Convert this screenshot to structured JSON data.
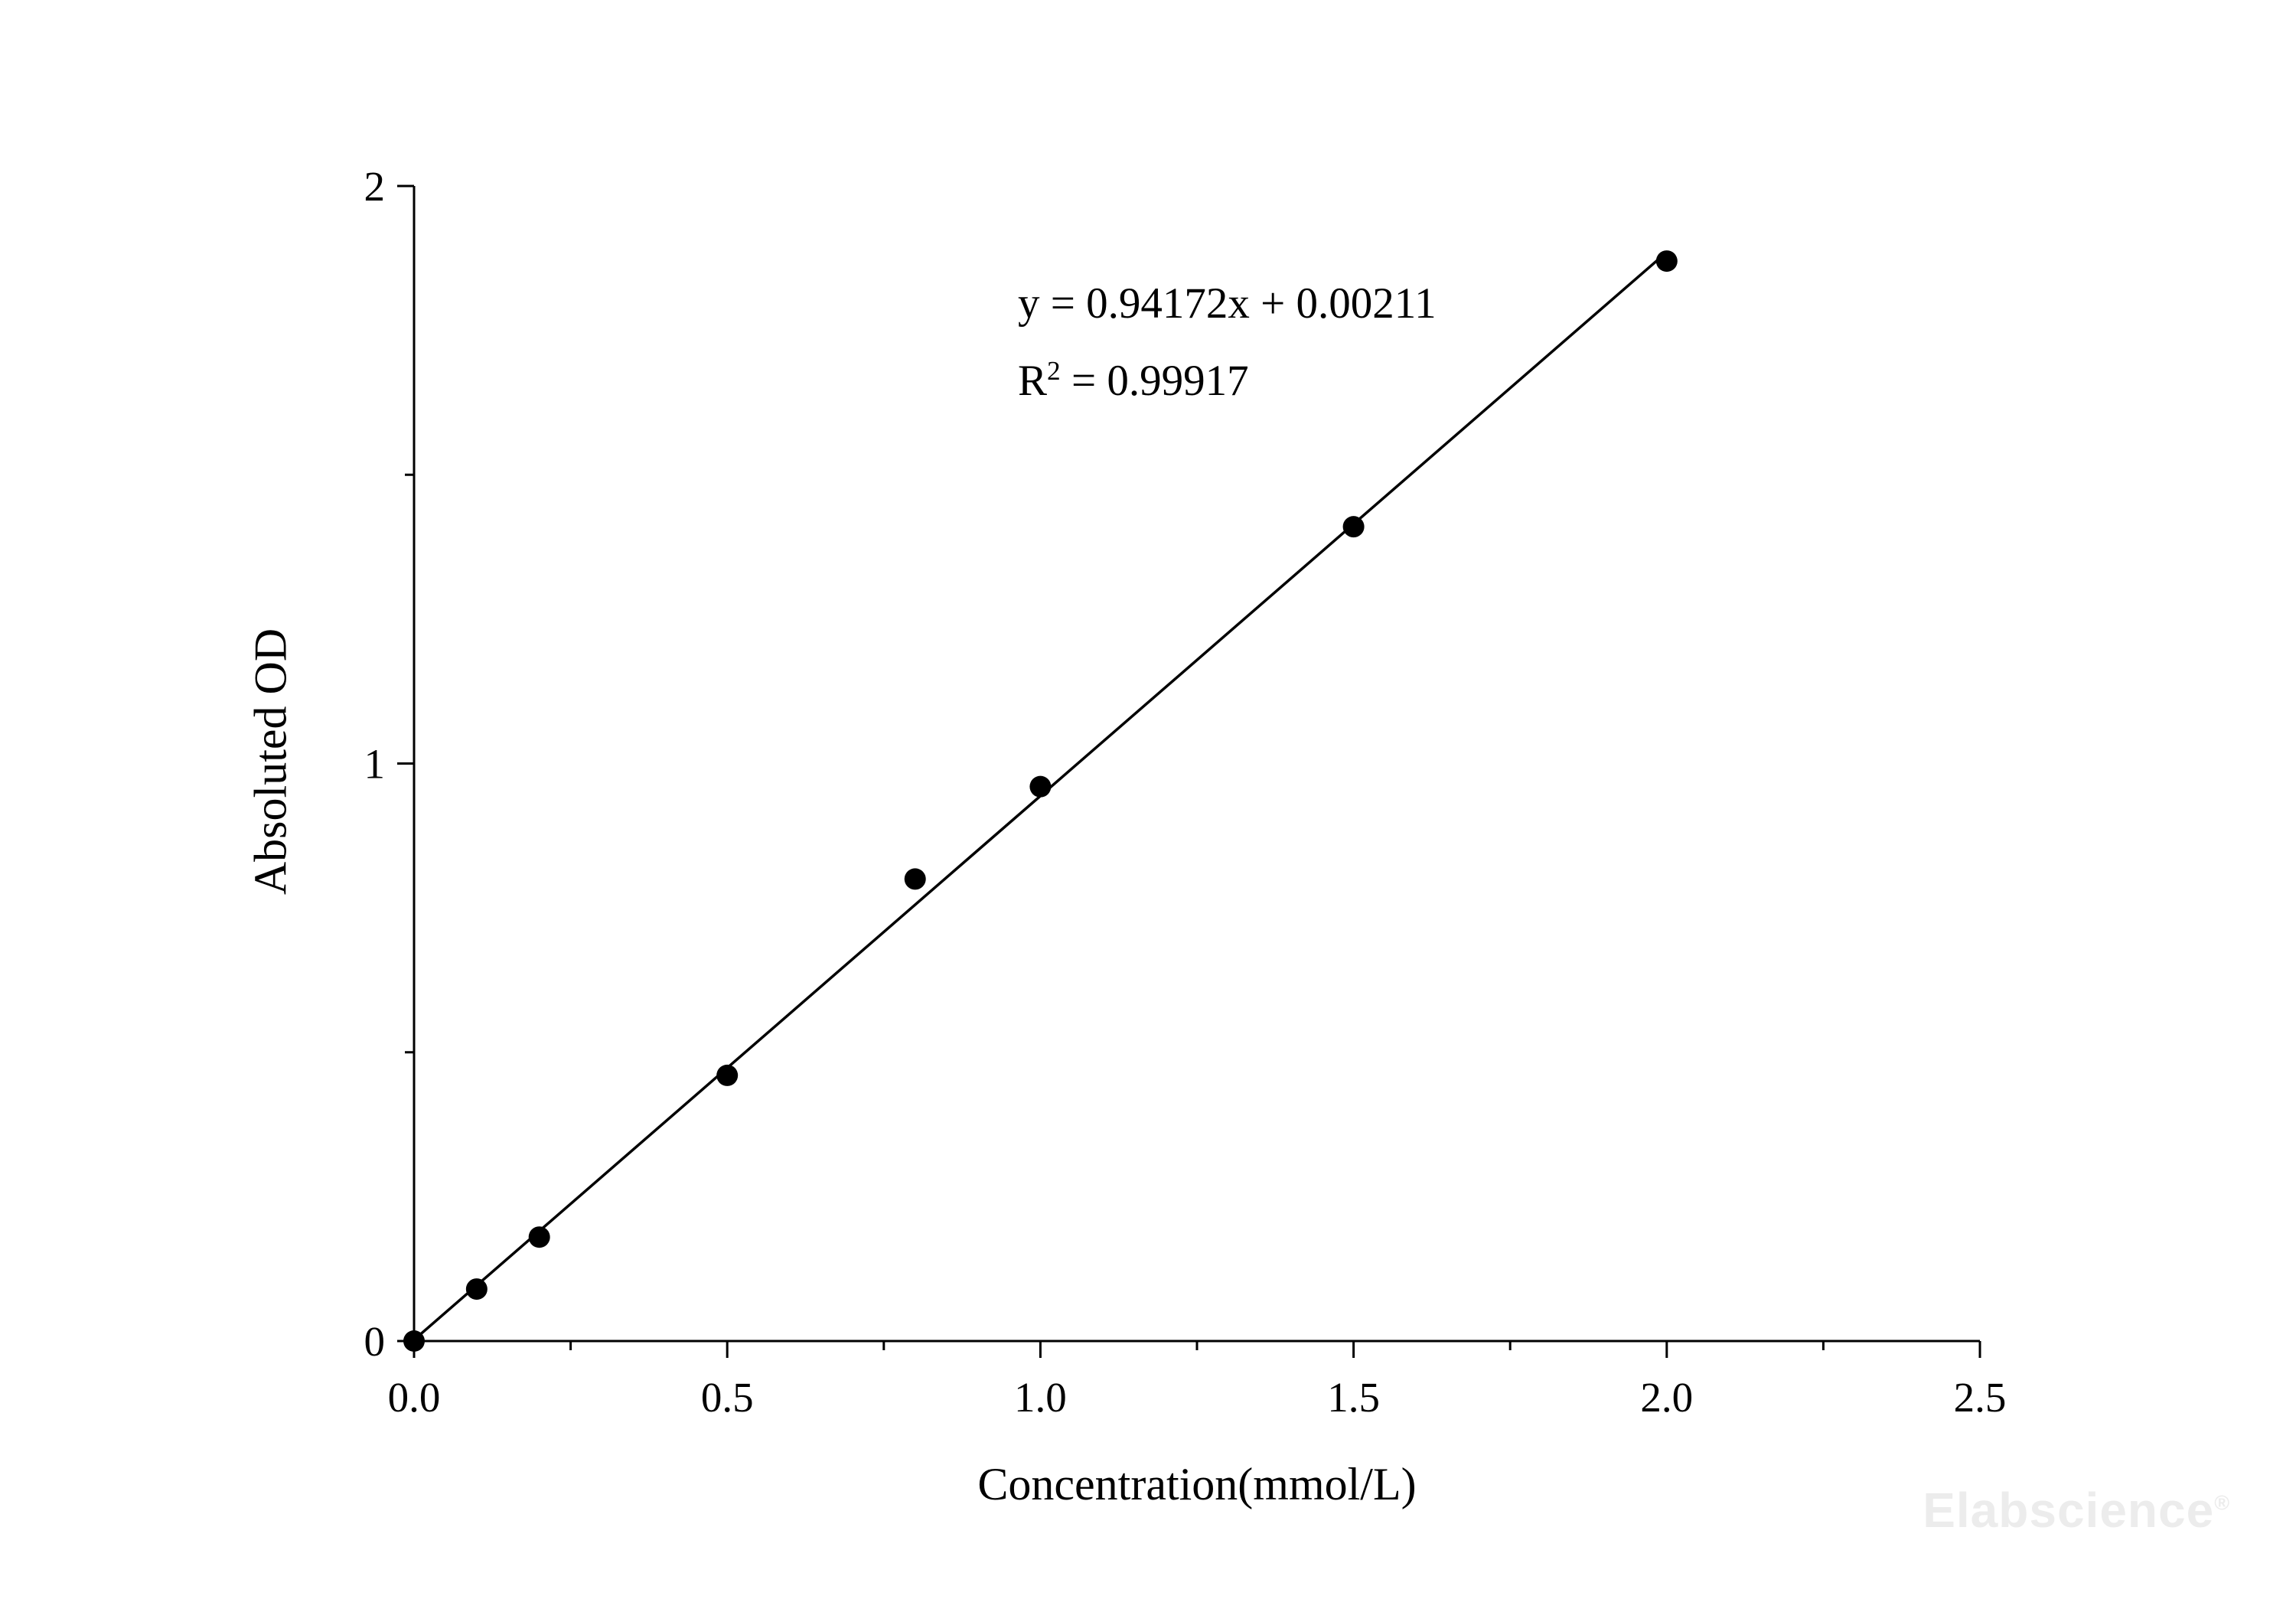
{
  "chart_data": {
    "type": "scatter",
    "title": "",
    "xlabel": "Concentration(mmol/L)",
    "ylabel": "Absoluted OD",
    "xlim": [
      0,
      2.5
    ],
    "ylim": [
      0,
      2
    ],
    "x_ticks": [
      0,
      0.5,
      1.0,
      1.5,
      2.0,
      2.5
    ],
    "x_tick_labels": [
      "0.0",
      "0.5",
      "1.0",
      "1.5",
      "2.0",
      "2.5"
    ],
    "x_minor_step": 0.25,
    "y_ticks": [
      0,
      1,
      2
    ],
    "y_tick_labels": [
      "0",
      "1",
      "2"
    ],
    "y_minor_step": 0.5,
    "grid": false,
    "legend": "none",
    "points": {
      "x": [
        0,
        0.1,
        0.2,
        0.5,
        0.8,
        1.0,
        1.5,
        2.0
      ],
      "y": [
        0.0,
        0.09,
        0.18,
        0.46,
        0.8,
        0.96,
        1.41,
        1.87
      ]
    },
    "fit": {
      "slope": 0.94172,
      "intercept": 0.00211,
      "x_start": 0,
      "x_end": 2.0
    },
    "annotation": {
      "equation": "y = 0.94172x + 0.00211",
      "r2_base": "R",
      "r2_sup": "2",
      "r2_rest": " = 0.99917"
    },
    "colors": {
      "points": "#000000",
      "line": "#000000",
      "axis": "#000000"
    }
  },
  "watermark": {
    "text": "Elabscience",
    "mark": "®",
    "color": "#ececec"
  }
}
